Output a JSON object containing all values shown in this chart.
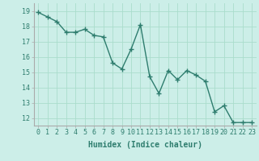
{
  "xlabel": "Humidex (Indice chaleur)",
  "x": [
    0,
    1,
    2,
    3,
    4,
    5,
    6,
    7,
    8,
    9,
    10,
    11,
    12,
    13,
    14,
    15,
    16,
    17,
    18,
    19,
    20,
    21,
    22,
    23
  ],
  "y": [
    18.9,
    18.6,
    18.3,
    17.6,
    17.6,
    17.8,
    17.4,
    17.3,
    15.6,
    15.2,
    16.5,
    18.1,
    14.7,
    13.6,
    15.1,
    14.5,
    15.1,
    14.8,
    14.4,
    12.4,
    12.8,
    11.7,
    11.7,
    11.7
  ],
  "line_color": "#2e7d6e",
  "marker": "+",
  "marker_size": 4,
  "bg_color": "#cceee8",
  "grid_color": "#aaddcc",
  "ylim": [
    11.5,
    19.5
  ],
  "yticks": [
    12,
    13,
    14,
    15,
    16,
    17,
    18,
    19
  ],
  "xticks": [
    0,
    1,
    2,
    3,
    4,
    5,
    6,
    7,
    8,
    9,
    10,
    11,
    12,
    13,
    14,
    15,
    16,
    17,
    18,
    19,
    20,
    21,
    22,
    23
  ],
  "xlabel_fontsize": 7,
  "tick_fontsize": 6,
  "linewidth": 1.0
}
